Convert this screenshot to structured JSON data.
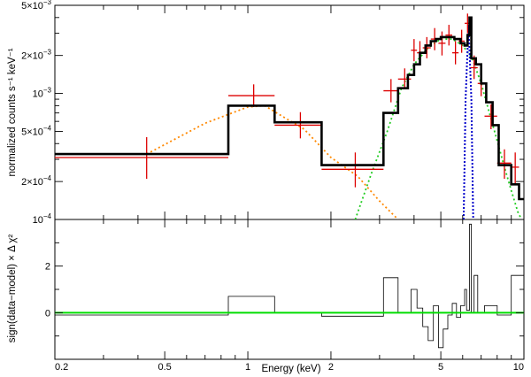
{
  "chart_data": [
    {
      "panel": "spectrum",
      "type": "line",
      "xlabel": "Energy (keV)",
      "ylabel": "normalized counts s⁻¹ keV⁻¹",
      "xscale": "log",
      "yscale": "log",
      "xlim": [
        0.2,
        10
      ],
      "ylim": [
        0.0001,
        0.005
      ],
      "grid": false,
      "legend": "none",
      "x_ticks": [
        {
          "value": 0.2,
          "label": "0.2"
        },
        {
          "value": 0.5,
          "label": "0.5"
        },
        {
          "value": 1,
          "label": "1"
        },
        {
          "value": 2,
          "label": "2"
        },
        {
          "value": 5,
          "label": "5"
        },
        {
          "value": 10,
          "label": "10"
        }
      ],
      "y_ticks": [
        {
          "value": 0.0001,
          "mant": "10",
          "exp": "−4"
        },
        {
          "value": 0.0002,
          "mant": "2×10",
          "exp": "−4"
        },
        {
          "value": 0.0005,
          "mant": "5×10",
          "exp": "−4"
        },
        {
          "value": 0.001,
          "mant": "10",
          "exp": "−3"
        },
        {
          "value": 0.002,
          "mant": "2×10",
          "exp": "−3"
        },
        {
          "value": 0.005,
          "mant": "5×10",
          "exp": "−3"
        }
      ],
      "data_points": [
        {
          "x": 0.43,
          "xlo": 0.2,
          "xhi": 0.85,
          "y": 0.00031,
          "ylo": 0.00021,
          "yhi": 0.00045
        },
        {
          "x": 1.05,
          "xlo": 0.85,
          "xhi": 1.25,
          "y": 0.00096,
          "ylo": 0.00078,
          "yhi": 0.00118
        },
        {
          "x": 1.55,
          "xlo": 1.25,
          "xhi": 1.85,
          "y": 0.00056,
          "ylo": 0.00044,
          "yhi": 0.00071
        },
        {
          "x": 2.45,
          "xlo": 1.85,
          "xhi": 3.1,
          "y": 0.00025,
          "ylo": 0.00018,
          "yhi": 0.00034
        },
        {
          "x": 3.3,
          "xlo": 3.1,
          "xhi": 3.5,
          "y": 0.00105,
          "ylo": 0.00085,
          "yhi": 0.0013
        },
        {
          "x": 3.7,
          "xlo": 3.5,
          "xhi": 3.9,
          "y": 0.0013,
          "ylo": 0.00108,
          "yhi": 0.00158
        },
        {
          "x": 4.0,
          "xlo": 3.9,
          "xhi": 4.1,
          "y": 0.0022,
          "ylo": 0.0018,
          "yhi": 0.0027
        },
        {
          "x": 4.2,
          "xlo": 4.1,
          "xhi": 4.3,
          "y": 0.0021,
          "ylo": 0.0017,
          "yhi": 0.0026
        },
        {
          "x": 4.45,
          "xlo": 4.3,
          "xhi": 4.6,
          "y": 0.0023,
          "ylo": 0.0019,
          "yhi": 0.0028
        },
        {
          "x": 4.75,
          "xlo": 4.6,
          "xhi": 4.9,
          "y": 0.0027,
          "ylo": 0.0022,
          "yhi": 0.0033
        },
        {
          "x": 5.05,
          "xlo": 4.9,
          "xhi": 5.2,
          "y": 0.0025,
          "ylo": 0.002,
          "yhi": 0.0031
        },
        {
          "x": 5.35,
          "xlo": 5.2,
          "xhi": 5.5,
          "y": 0.0029,
          "ylo": 0.0024,
          "yhi": 0.0035
        },
        {
          "x": 5.65,
          "xlo": 5.5,
          "xhi": 5.8,
          "y": 0.0021,
          "ylo": 0.0017,
          "yhi": 0.0026
        },
        {
          "x": 5.95,
          "xlo": 5.8,
          "xhi": 6.1,
          "y": 0.0026,
          "ylo": 0.0021,
          "yhi": 0.0032
        },
        {
          "x": 6.25,
          "xlo": 6.1,
          "xhi": 6.4,
          "y": 0.0036,
          "ylo": 0.003,
          "yhi": 0.0043
        },
        {
          "x": 6.6,
          "xlo": 6.4,
          "xhi": 6.8,
          "y": 0.0016,
          "ylo": 0.0013,
          "yhi": 0.002
        },
        {
          "x": 7.0,
          "xlo": 6.8,
          "xhi": 7.2,
          "y": 0.0012,
          "ylo": 0.00095,
          "yhi": 0.0015
        },
        {
          "x": 7.6,
          "xlo": 7.2,
          "xhi": 8.0,
          "y": 0.00066,
          "ylo": 0.00052,
          "yhi": 0.00082
        },
        {
          "x": 8.5,
          "xlo": 8.0,
          "xhi": 9.0,
          "y": 0.00028,
          "ylo": 0.00021,
          "yhi": 0.00036
        },
        {
          "x": 9.3,
          "xlo": 9.0,
          "xhi": 9.6,
          "y": 0.00026,
          "ylo": 0.00019,
          "yhi": 0.00034
        }
      ],
      "model_steps": [
        [
          0.2,
          0.00033
        ],
        [
          0.85,
          0.0008
        ],
        [
          1.25,
          0.00059
        ],
        [
          1.85,
          0.00027
        ],
        [
          3.1,
          0.0007
        ],
        [
          3.5,
          0.0011
        ],
        [
          3.8,
          0.0014
        ],
        [
          4.0,
          0.0017
        ],
        [
          4.2,
          0.0021
        ],
        [
          4.4,
          0.0024
        ],
        [
          4.6,
          0.0026
        ],
        [
          4.8,
          0.0027
        ],
        [
          5.0,
          0.0028
        ],
        [
          5.3,
          0.0028
        ],
        [
          5.6,
          0.0027
        ],
        [
          5.9,
          0.0025
        ],
        [
          6.1,
          0.0024
        ],
        [
          6.25,
          0.0029
        ],
        [
          6.35,
          0.004
        ],
        [
          6.45,
          0.0019
        ],
        [
          6.7,
          0.0017
        ],
        [
          7.0,
          0.0012
        ],
        [
          7.3,
          0.00085
        ],
        [
          7.7,
          0.00056
        ],
        [
          8.1,
          0.00027
        ],
        [
          9.0,
          0.00019
        ],
        [
          9.6,
          0.000145
        ],
        [
          10.0,
          0.000145
        ]
      ],
      "soft_component": [
        [
          0.43,
          0.00033
        ],
        [
          0.7,
          0.00058
        ],
        [
          1.0,
          0.00078
        ],
        [
          1.15,
          0.0008
        ],
        [
          1.3,
          0.00068
        ],
        [
          1.6,
          0.00052
        ],
        [
          2.0,
          0.00031
        ],
        [
          2.5,
          0.00022
        ],
        [
          3.0,
          0.00014
        ],
        [
          3.5,
          0.0001
        ]
      ],
      "hard_component": [
        [
          2.45,
          0.0001
        ],
        [
          2.8,
          0.00023
        ],
        [
          3.2,
          0.0005
        ],
        [
          3.6,
          0.0011
        ],
        [
          4.0,
          0.0017
        ],
        [
          4.5,
          0.0023
        ],
        [
          5.0,
          0.0027
        ],
        [
          5.5,
          0.0027
        ],
        [
          6.0,
          0.0024
        ],
        [
          6.5,
          0.0019
        ],
        [
          7.0,
          0.0012
        ],
        [
          7.5,
          0.0007
        ],
        [
          8.0,
          0.00042
        ],
        [
          8.5,
          0.00026
        ],
        [
          9.0,
          0.00017
        ],
        [
          9.5,
          0.000115
        ],
        [
          9.8,
          0.0001
        ]
      ],
      "line_component": [
        [
          6.05,
          0.0001
        ],
        [
          6.15,
          0.0009
        ],
        [
          6.3,
          0.0035
        ],
        [
          6.45,
          0.0009
        ],
        [
          6.55,
          0.0001
        ]
      ],
      "colors": {
        "data": "#dd0000",
        "model": "#000000",
        "soft_component": "#ff8800",
        "hard_component": "#22cc22",
        "line_component": "#0000cc"
      }
    },
    {
      "panel": "residuals",
      "type": "line",
      "xlabel": "Energy (keV)",
      "ylabel": "sign(data−model) × Δ χ²",
      "xscale": "log",
      "xlim": [
        0.2,
        10
      ],
      "ylim": [
        -2,
        4
      ],
      "y_ticks": [
        {
          "value": 0,
          "label": "0"
        },
        {
          "value": 2,
          "label": "2"
        }
      ],
      "zero_line": 0,
      "residual_steps": [
        [
          0.2,
          -0.1
        ],
        [
          0.85,
          0.7
        ],
        [
          1.25,
          0.0
        ],
        [
          1.85,
          -0.15
        ],
        [
          3.1,
          1.5
        ],
        [
          3.5,
          0.0
        ],
        [
          3.9,
          1.0
        ],
        [
          4.1,
          0.2
        ],
        [
          4.3,
          -0.6
        ],
        [
          4.5,
          -1.2
        ],
        [
          4.7,
          0.3
        ],
        [
          4.9,
          -1.5
        ],
        [
          5.1,
          -0.7
        ],
        [
          5.3,
          -0.1
        ],
        [
          5.5,
          0.4
        ],
        [
          5.7,
          -0.2
        ],
        [
          5.9,
          0.3
        ],
        [
          6.1,
          1.0
        ],
        [
          6.2,
          0.1
        ],
        [
          6.35,
          3.8
        ],
        [
          6.45,
          0.0
        ],
        [
          6.6,
          1.6
        ],
        [
          6.8,
          0.0
        ],
        [
          7.2,
          0.3
        ],
        [
          8.0,
          -0.1
        ],
        [
          9.0,
          1.6
        ],
        [
          10.0,
          1.6
        ]
      ],
      "colors": {
        "residual": "#000000",
        "zero_line": "#00dd00"
      }
    }
  ]
}
